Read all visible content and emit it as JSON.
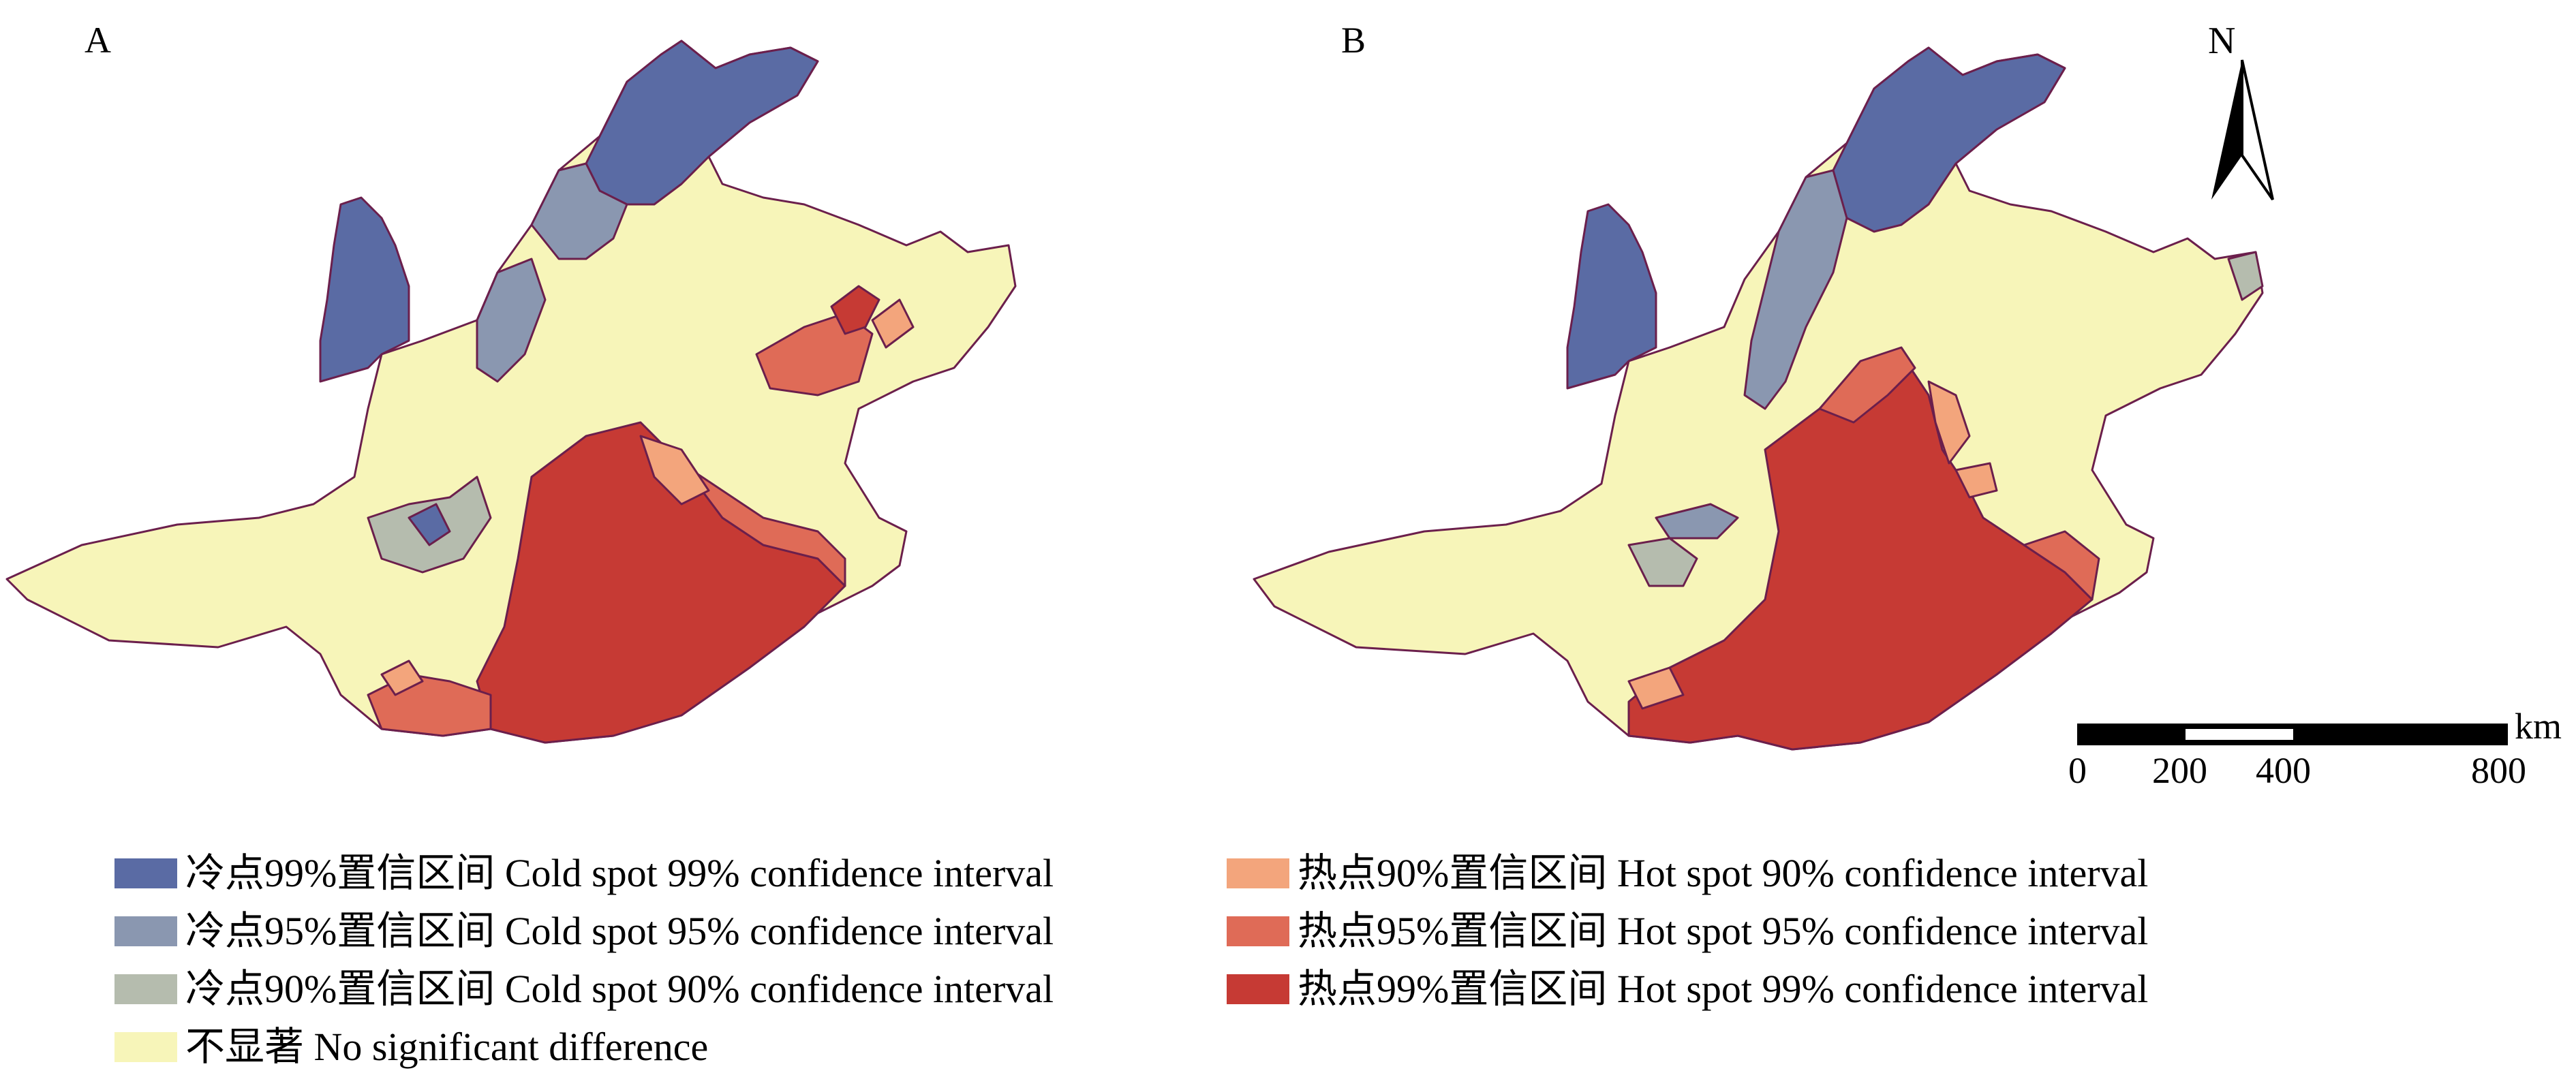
{
  "panels": [
    {
      "label": "A"
    },
    {
      "label": "B"
    }
  ],
  "colors": {
    "cold99": "#5a6ba4",
    "cold95": "#8a97b0",
    "cold90": "#b5bcae",
    "none": "#f7f5b9",
    "hot90": "#f3a57c",
    "hot95": "#df6b57",
    "hot99": "#c63a34",
    "border": "#6b1f4c"
  },
  "legend": [
    {
      "key": "cold99",
      "text": "冷点99%置信区间 Cold spot 99% confidence interval"
    },
    {
      "key": "cold95",
      "text": "冷点95%置信区间 Cold spot 95% confidence interval"
    },
    {
      "key": "cold90",
      "text": "冷点90%置信区间 Cold spot 90% confidence interval"
    },
    {
      "key": "none",
      "text": "不显著 No significant difference"
    },
    {
      "key": "hot90",
      "text": "热点90%置信区间 Hot spot 90% confidence interval"
    },
    {
      "key": "hot95",
      "text": "热点95%置信区间 Hot spot 95% confidence interval"
    },
    {
      "key": "hot99",
      "text": "热点99%置信区间 Hot spot 99% confidence interval"
    }
  ],
  "north_arrow": {
    "label": "N"
  },
  "scale_bar": {
    "unit": "km",
    "ticks": [
      "0",
      "200",
      "400",
      "800"
    ]
  }
}
